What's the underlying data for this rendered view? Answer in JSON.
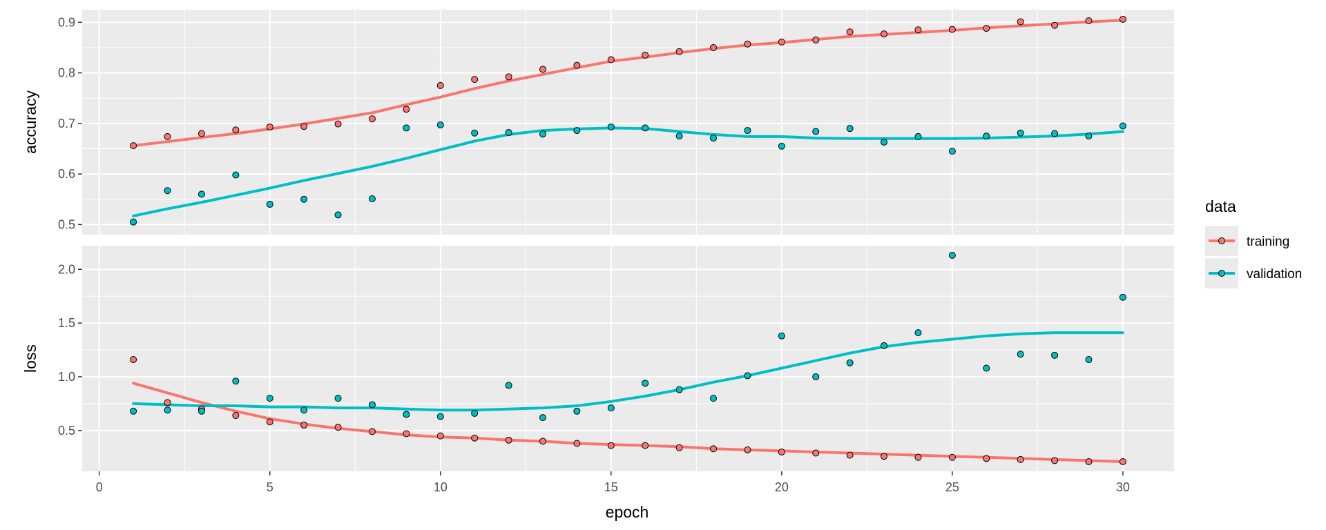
{
  "chart_data": {
    "type": "scatter",
    "x_label": "epoch",
    "x_range": [
      -0.5,
      31.5
    ],
    "x_ticks": [
      0,
      5,
      10,
      15,
      20,
      25,
      30
    ],
    "legend": {
      "title": "data",
      "placement": "right",
      "entries": [
        "training",
        "validation"
      ]
    },
    "colors": {
      "training": "#F8766D",
      "validation": "#00BFC4",
      "panel": "#EBEBEB",
      "grid": "#FFFFFF"
    },
    "grid": true,
    "facets": [
      {
        "name": "accuracy",
        "y_label": "accuracy",
        "y_range": [
          0.48,
          0.925
        ],
        "y_ticks": [
          0.5,
          0.6,
          0.7,
          0.8,
          0.9
        ],
        "y_tick_labels": [
          "0.5",
          "0.6",
          "0.7",
          "0.8",
          "0.9"
        ],
        "series": [
          {
            "name": "training",
            "x": [
              1,
              2,
              3,
              4,
              5,
              6,
              7,
              8,
              9,
              10,
              11,
              12,
              13,
              14,
              15,
              16,
              17,
              18,
              19,
              20,
              21,
              22,
              23,
              24,
              25,
              26,
              27,
              28,
              29,
              30
            ],
            "y": [
              0.656,
              0.674,
              0.68,
              0.687,
              0.693,
              0.694,
              0.699,
              0.709,
              0.728,
              0.775,
              0.787,
              0.792,
              0.807,
              0.815,
              0.826,
              0.835,
              0.842,
              0.85,
              0.857,
              0.861,
              0.865,
              0.881,
              0.877,
              0.885,
              0.886,
              0.888,
              0.901,
              0.894,
              0.903,
              0.906
            ],
            "smooth_y": [
              0.656,
              0.664,
              0.672,
              0.68,
              0.689,
              0.699,
              0.71,
              0.721,
              0.737,
              0.752,
              0.769,
              0.784,
              0.797,
              0.81,
              0.823,
              0.831,
              0.84,
              0.848,
              0.855,
              0.86,
              0.866,
              0.872,
              0.876,
              0.88,
              0.884,
              0.889,
              0.893,
              0.897,
              0.901,
              0.904
            ]
          },
          {
            "name": "validation",
            "x": [
              1,
              2,
              3,
              4,
              5,
              6,
              7,
              8,
              9,
              10,
              11,
              12,
              13,
              14,
              15,
              16,
              17,
              18,
              19,
              20,
              21,
              22,
              23,
              24,
              25,
              26,
              27,
              28,
              29,
              30
            ],
            "y": [
              0.505,
              0.567,
              0.56,
              0.598,
              0.54,
              0.55,
              0.519,
              0.551,
              0.691,
              0.697,
              0.681,
              0.682,
              0.679,
              0.686,
              0.693,
              0.691,
              0.675,
              0.671,
              0.686,
              0.655,
              0.684,
              0.69,
              0.663,
              0.674,
              0.645,
              0.675,
              0.681,
              0.68,
              0.675,
              0.695
            ],
            "smooth_y": [
              0.517,
              0.531,
              0.544,
              0.558,
              0.572,
              0.587,
              0.601,
              0.615,
              0.631,
              0.648,
              0.665,
              0.678,
              0.686,
              0.689,
              0.691,
              0.69,
              0.684,
              0.678,
              0.674,
              0.674,
              0.671,
              0.67,
              0.67,
              0.67,
              0.67,
              0.671,
              0.673,
              0.675,
              0.679,
              0.684
            ]
          }
        ]
      },
      {
        "name": "loss",
        "y_label": "loss",
        "y_range": [
          0.12,
          2.22
        ],
        "y_ticks": [
          0.5,
          1.0,
          1.5,
          2.0
        ],
        "y_tick_labels": [
          "0.5",
          "1.0",
          "1.5",
          "2.0"
        ],
        "series": [
          {
            "name": "training",
            "x": [
              1,
              2,
              3,
              4,
              5,
              6,
              7,
              8,
              9,
              10,
              11,
              12,
              13,
              14,
              15,
              16,
              17,
              18,
              19,
              20,
              21,
              22,
              23,
              24,
              25,
              26,
              27,
              28,
              29,
              30
            ],
            "y": [
              1.16,
              0.76,
              0.7,
              0.64,
              0.58,
              0.55,
              0.53,
              0.49,
              0.47,
              0.45,
              0.43,
              0.41,
              0.4,
              0.38,
              0.36,
              0.36,
              0.34,
              0.33,
              0.32,
              0.3,
              0.29,
              0.27,
              0.26,
              0.25,
              0.25,
              0.24,
              0.23,
              0.22,
              0.21,
              0.21
            ],
            "smooth_y": [
              0.94,
              0.85,
              0.76,
              0.68,
              0.61,
              0.56,
              0.52,
              0.49,
              0.46,
              0.44,
              0.43,
              0.41,
              0.4,
              0.38,
              0.37,
              0.36,
              0.35,
              0.33,
              0.32,
              0.31,
              0.3,
              0.29,
              0.28,
              0.27,
              0.26,
              0.25,
              0.24,
              0.23,
              0.22,
              0.21
            ]
          },
          {
            "name": "validation",
            "x": [
              1,
              2,
              3,
              4,
              5,
              6,
              7,
              8,
              9,
              10,
              11,
              12,
              13,
              14,
              15,
              16,
              17,
              18,
              19,
              20,
              21,
              22,
              23,
              24,
              25,
              26,
              27,
              28,
              29,
              30
            ],
            "y": [
              0.68,
              0.69,
              0.68,
              0.96,
              0.8,
              0.69,
              0.8,
              0.74,
              0.65,
              0.63,
              0.66,
              0.92,
              0.62,
              0.68,
              0.71,
              0.94,
              0.88,
              0.8,
              1.01,
              1.38,
              1.0,
              1.13,
              1.29,
              1.41,
              2.13,
              1.08,
              1.21,
              1.2,
              1.16,
              1.74
            ],
            "smooth_y": [
              0.75,
              0.74,
              0.73,
              0.73,
              0.72,
              0.72,
              0.71,
              0.71,
              0.7,
              0.69,
              0.69,
              0.7,
              0.71,
              0.73,
              0.77,
              0.82,
              0.88,
              0.95,
              1.01,
              1.08,
              1.15,
              1.22,
              1.28,
              1.32,
              1.35,
              1.38,
              1.4,
              1.41,
              1.41,
              1.41
            ]
          }
        ]
      }
    ]
  }
}
